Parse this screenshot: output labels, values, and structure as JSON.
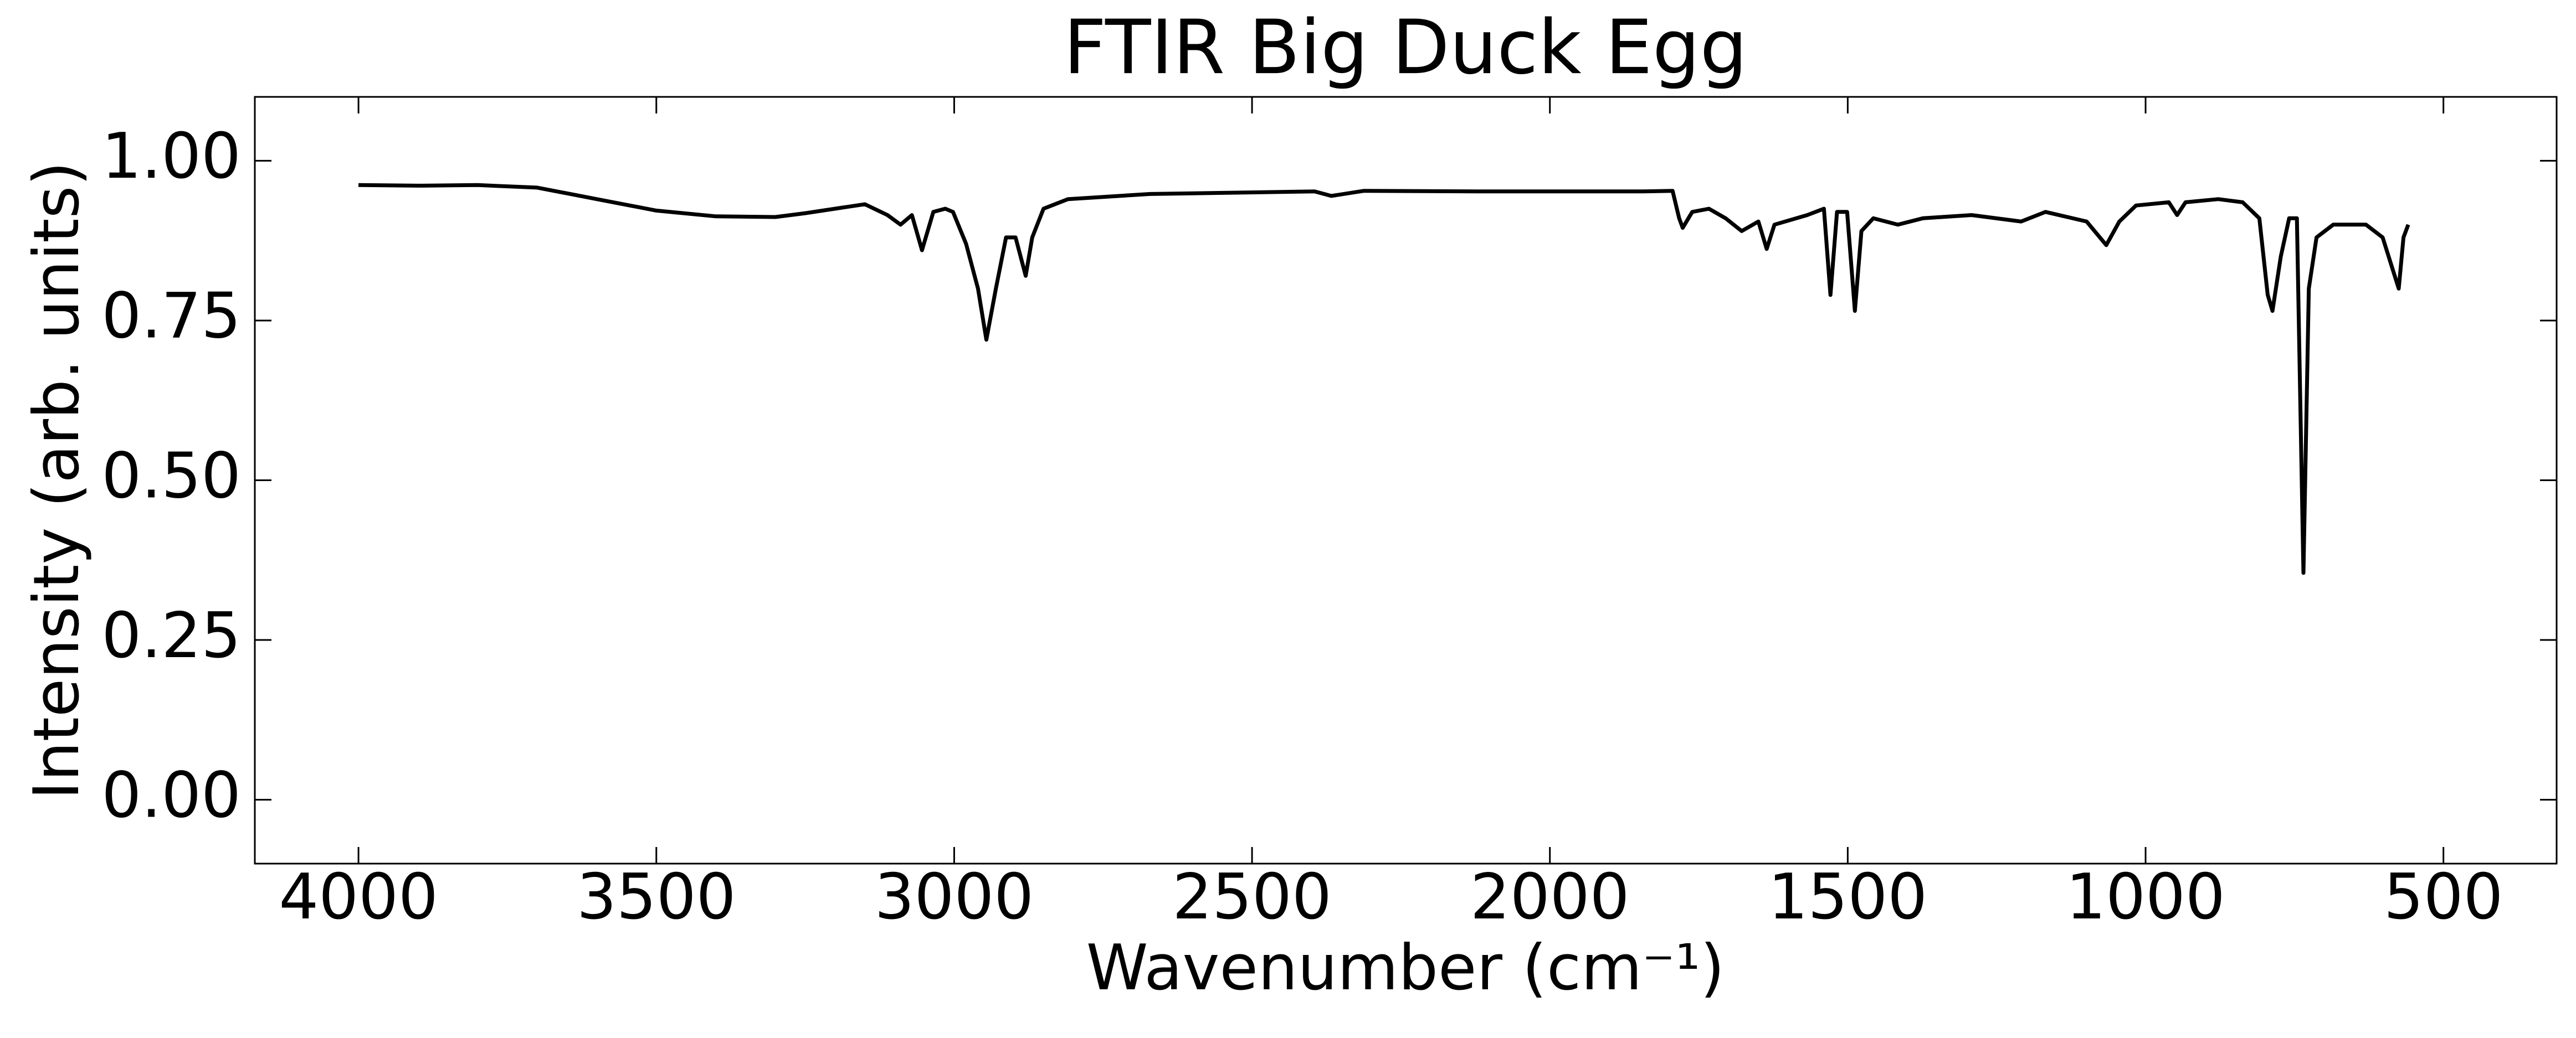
{
  "chart_data": {
    "type": "line",
    "title": "FTIR Big Duck Egg",
    "x_label": "Wavenumber (cm⁻¹)",
    "y_label": "Intensity (arb. units)",
    "color": "#000000",
    "x": [
      4000,
      3900,
      3800,
      3700,
      3600,
      3500,
      3400,
      3300,
      3250,
      3200,
      3150,
      3112,
      3090,
      3071,
      3054,
      3035,
      3015,
      3002,
      2980,
      2960,
      2946,
      2930,
      2913,
      2897,
      2880,
      2869,
      2850,
      2809,
      2671,
      2395,
      2367,
      2312,
      2119,
      1843,
      1794,
      1783,
      1777,
      1761,
      1733,
      1705,
      1678,
      1650,
      1636,
      1623,
      1568,
      1540,
      1529,
      1518,
      1501,
      1488,
      1477,
      1457,
      1416,
      1374,
      1292,
      1209,
      1168,
      1099,
      1066,
      1044,
      1016,
      961,
      947,
      933,
      878,
      837,
      809,
      795,
      787,
      773,
      759,
      746,
      735,
      726,
      713,
      685,
      630,
      602,
      575,
      567,
      559
    ],
    "values": [
      0.962,
      0.961,
      0.962,
      0.958,
      0.94,
      0.922,
      0.913,
      0.912,
      0.918,
      0.925,
      0.932,
      0.915,
      0.9,
      0.915,
      0.86,
      0.92,
      0.925,
      0.92,
      0.87,
      0.8,
      0.72,
      0.8,
      0.88,
      0.88,
      0.82,
      0.88,
      0.925,
      0.94,
      0.948,
      0.952,
      0.945,
      0.953,
      0.952,
      0.952,
      0.953,
      0.91,
      0.895,
      0.92,
      0.925,
      0.91,
      0.89,
      0.905,
      0.862,
      0.9,
      0.915,
      0.925,
      0.79,
      0.92,
      0.92,
      0.765,
      0.89,
      0.91,
      0.9,
      0.91,
      0.915,
      0.905,
      0.92,
      0.905,
      0.868,
      0.905,
      0.93,
      0.935,
      0.915,
      0.935,
      0.94,
      0.935,
      0.91,
      0.79,
      0.765,
      0.85,
      0.91,
      0.91,
      0.355,
      0.8,
      0.88,
      0.9,
      0.9,
      0.88,
      0.8,
      0.88,
      0.9
    ],
    "xlim": [
      4174,
      310
    ],
    "ylim": [
      -0.1,
      1.1
    ],
    "xticks": [
      4000,
      3500,
      3000,
      2500,
      2000,
      1500,
      1000,
      500
    ],
    "yticks": [
      {
        "value": 0,
        "label": "0.00"
      },
      0.25,
      {
        "value": 0.5,
        "label": "0.50"
      },
      0.75,
      {
        "value": 1,
        "label": "1.00"
      }
    ]
  }
}
